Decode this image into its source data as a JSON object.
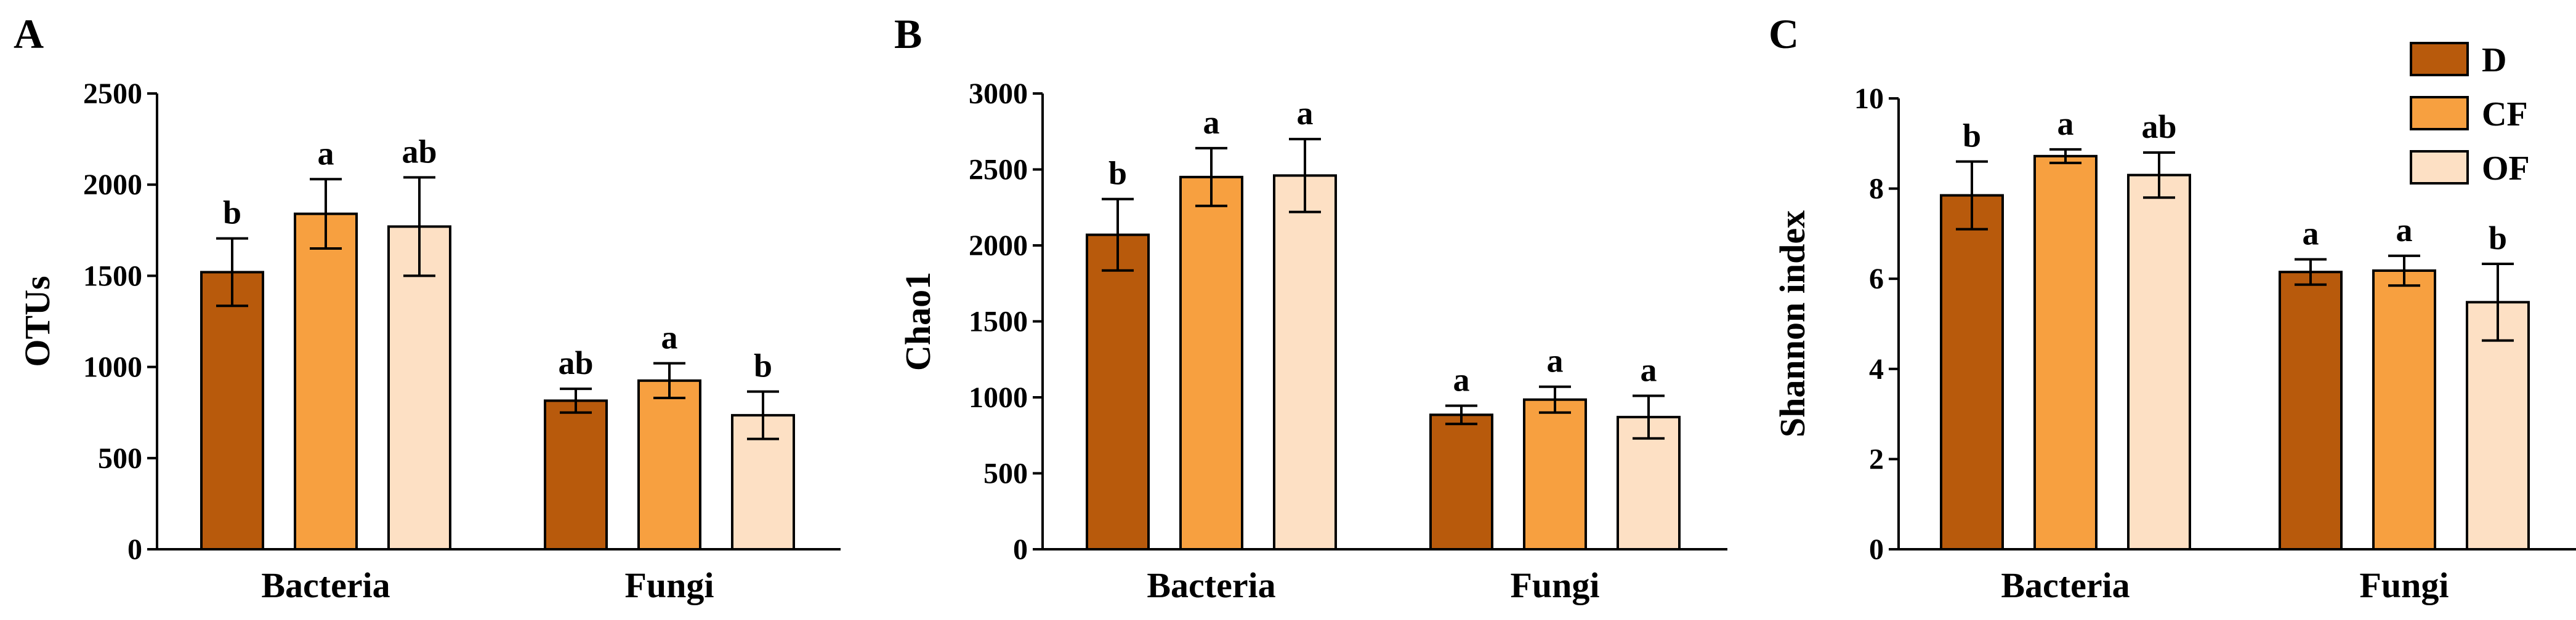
{
  "colors": {
    "D": "#b85a0c",
    "CF": "#f7a040",
    "OF": "#fde0c4"
  },
  "legend": [
    {
      "key": "D",
      "label": "D"
    },
    {
      "key": "CF",
      "label": "CF"
    },
    {
      "key": "OF",
      "label": "OF"
    }
  ],
  "chart_data": [
    {
      "type": "bar",
      "panel": "A",
      "ylabel": "OTUs",
      "ylim": [
        0,
        2500
      ],
      "yticks": [
        "0",
        "500",
        "1000",
        "1500",
        "2000",
        "2500"
      ],
      "categories": [
        "Bacteria",
        "Fungi"
      ],
      "series": [
        {
          "name": "D",
          "values": [
            1520,
            815
          ],
          "errors": [
            185,
            65
          ],
          "letters": [
            "b",
            "ab"
          ]
        },
        {
          "name": "CF",
          "values": [
            1840,
            925
          ],
          "errors": [
            190,
            95
          ],
          "letters": [
            "a",
            "a"
          ]
        },
        {
          "name": "OF",
          "values": [
            1770,
            735
          ],
          "errors": [
            270,
            130
          ],
          "letters": [
            "ab",
            "b"
          ]
        }
      ]
    },
    {
      "type": "bar",
      "panel": "B",
      "ylabel": "Chao1",
      "ylim": [
        0,
        3000
      ],
      "yticks": [
        "0",
        "500",
        "1000",
        "1500",
        "2000",
        "2500",
        "3000"
      ],
      "categories": [
        "Bacteria",
        "Fungi"
      ],
      "series": [
        {
          "name": "D",
          "values": [
            2070,
            885
          ],
          "errors": [
            235,
            60
          ],
          "letters": [
            "b",
            "a"
          ]
        },
        {
          "name": "CF",
          "values": [
            2450,
            985
          ],
          "errors": [
            190,
            85
          ],
          "letters": [
            "a",
            "a"
          ]
        },
        {
          "name": "OF",
          "values": [
            2460,
            870
          ],
          "errors": [
            240,
            140
          ],
          "letters": [
            "a",
            "a"
          ]
        }
      ]
    },
    {
      "type": "bar",
      "panel": "C",
      "ylabel": "Shannon index",
      "ylim": [
        0,
        10
      ],
      "yticks": [
        "0",
        "2",
        "4",
        "6",
        "8",
        "10"
      ],
      "categories": [
        "Bacteria",
        "Fungi"
      ],
      "legend": "top-right",
      "series": [
        {
          "name": "D",
          "values": [
            7.85,
            6.15
          ],
          "errors": [
            0.75,
            0.28
          ],
          "letters": [
            "b",
            "a"
          ]
        },
        {
          "name": "CF",
          "values": [
            8.72,
            6.18
          ],
          "errors": [
            0.15,
            0.33
          ],
          "letters": [
            "a",
            "a"
          ]
        },
        {
          "name": "OF",
          "values": [
            8.3,
            5.48
          ],
          "errors": [
            0.5,
            0.85
          ],
          "letters": [
            "ab",
            "b"
          ]
        }
      ]
    }
  ]
}
